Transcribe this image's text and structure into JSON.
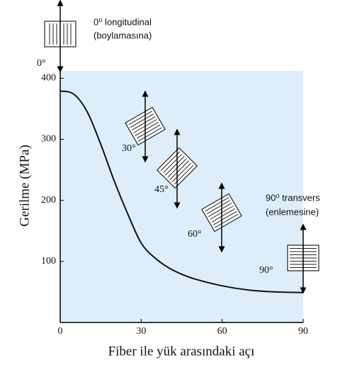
{
  "chart_data": {
    "type": "line",
    "x_label": "Fiber ile yük arasındaki açı",
    "y_label": "Gerilme (MPa)",
    "x": [
      0,
      5,
      10,
      15,
      20,
      25,
      30,
      35,
      40,
      45,
      50,
      60,
      70,
      80,
      90
    ],
    "values": [
      379,
      374,
      345,
      292,
      232,
      178,
      130,
      106,
      90,
      79,
      71,
      60,
      53,
      50,
      49
    ],
    "color": "#111111",
    "xlim": [
      0,
      90
    ],
    "xticks": [
      0,
      30,
      60,
      90
    ],
    "ylim": [
      0,
      412
    ],
    "yticks": [
      100,
      200,
      300,
      400
    ],
    "grid": false,
    "annotations": [
      "0⁰ longitudinal",
      "(boylamasına)",
      "0°",
      "30°",
      "45°",
      "60°",
      "90°",
      "90⁰ transvers",
      "(enlemesine)"
    ]
  }
}
